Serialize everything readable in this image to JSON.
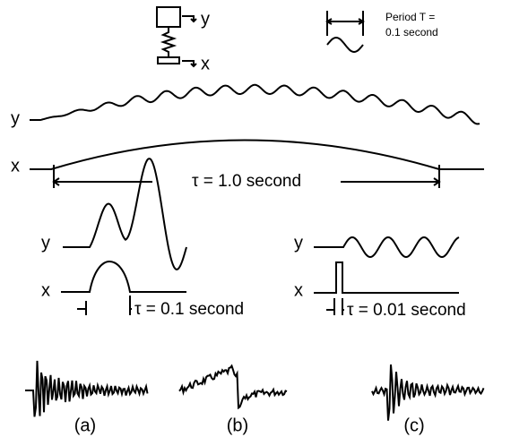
{
  "schematic": {
    "y_label": "y",
    "x_label": "x"
  },
  "period": {
    "line1": "Period T =",
    "line2": "0.1 second"
  },
  "long_pulse": {
    "y_label": "y",
    "x_label": "x",
    "duration": "τ = 1.0 second"
  },
  "medium_pulse": {
    "y_label": "y",
    "x_label": "x",
    "duration": "τ = 0.1 second"
  },
  "short_pulse": {
    "y_label": "y",
    "x_label": "x",
    "duration": "τ = 0.01 second"
  },
  "records": [
    "(a)",
    "(b)",
    "(c)"
  ]
}
